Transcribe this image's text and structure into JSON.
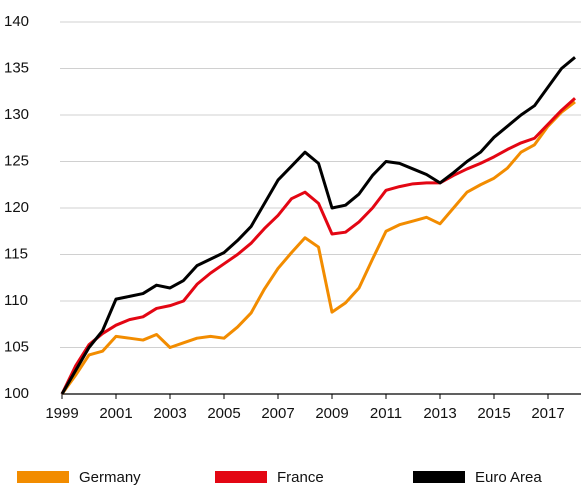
{
  "chart_data": {
    "type": "line",
    "x": [
      1999,
      1999.5,
      2000,
      2000.5,
      2001,
      2001.5,
      2002,
      2002.5,
      2003,
      2003.5,
      2004,
      2004.5,
      2005,
      2005.5,
      2006,
      2006.5,
      2007,
      2007.5,
      2008,
      2008.5,
      2009,
      2009.5,
      2010,
      2010.5,
      2011,
      2011.5,
      2012,
      2012.5,
      2013,
      2013.5,
      2014,
      2014.5,
      2015,
      2015.5,
      2016,
      2016.5,
      2017,
      2017.5,
      2018
    ],
    "series": [
      {
        "name": "Germany",
        "color": "#f28c00",
        "values": [
          100,
          102,
          104.2,
          104.6,
          106.2,
          106,
          105.8,
          106.4,
          105,
          105.5,
          106,
          106.2,
          106,
          107.2,
          108.7,
          111.3,
          113.5,
          115.2,
          116.8,
          115.8,
          108.8,
          109.8,
          111.4,
          114.5,
          117.5,
          118.2,
          118.6,
          119,
          118.3,
          120,
          121.7,
          122.5,
          123.2,
          124.3,
          126,
          126.8,
          128.8,
          130.3,
          131.4
        ]
      },
      {
        "name": "France",
        "color": "#e30613",
        "values": [
          100,
          103,
          105.3,
          106.5,
          107.4,
          108,
          108.3,
          109.2,
          109.5,
          110,
          111.8,
          113,
          114,
          115,
          116.2,
          117.8,
          119.2,
          121,
          121.7,
          120.5,
          117.2,
          117.4,
          118.5,
          120,
          121.9,
          122.3,
          122.6,
          122.7,
          122.7,
          123.5,
          124.2,
          124.8,
          125.5,
          126.3,
          127,
          127.5,
          129,
          130.5,
          131.8
        ]
      },
      {
        "name": "Euro Area",
        "color": "#000000",
        "values": [
          100,
          102.5,
          105,
          106.8,
          110.2,
          110.5,
          110.8,
          111.7,
          111.4,
          112.2,
          113.8,
          114.5,
          115.2,
          116.5,
          118,
          120.5,
          123,
          124.5,
          126,
          124.8,
          120,
          120.3,
          121.5,
          123.5,
          125,
          124.8,
          124.2,
          123.6,
          122.7,
          123.8,
          125,
          126,
          127.6,
          128.8,
          130,
          131,
          133,
          135,
          136.2
        ]
      }
    ],
    "xlim": [
      1999,
      2018.1
    ],
    "xticks": [
      1999,
      2001,
      2003,
      2005,
      2007,
      2009,
      2011,
      2013,
      2015,
      2017
    ],
    "ylim": [
      100,
      140
    ],
    "yticks": [
      100,
      105,
      110,
      115,
      120,
      125,
      130,
      135,
      140
    ],
    "grid": true
  }
}
